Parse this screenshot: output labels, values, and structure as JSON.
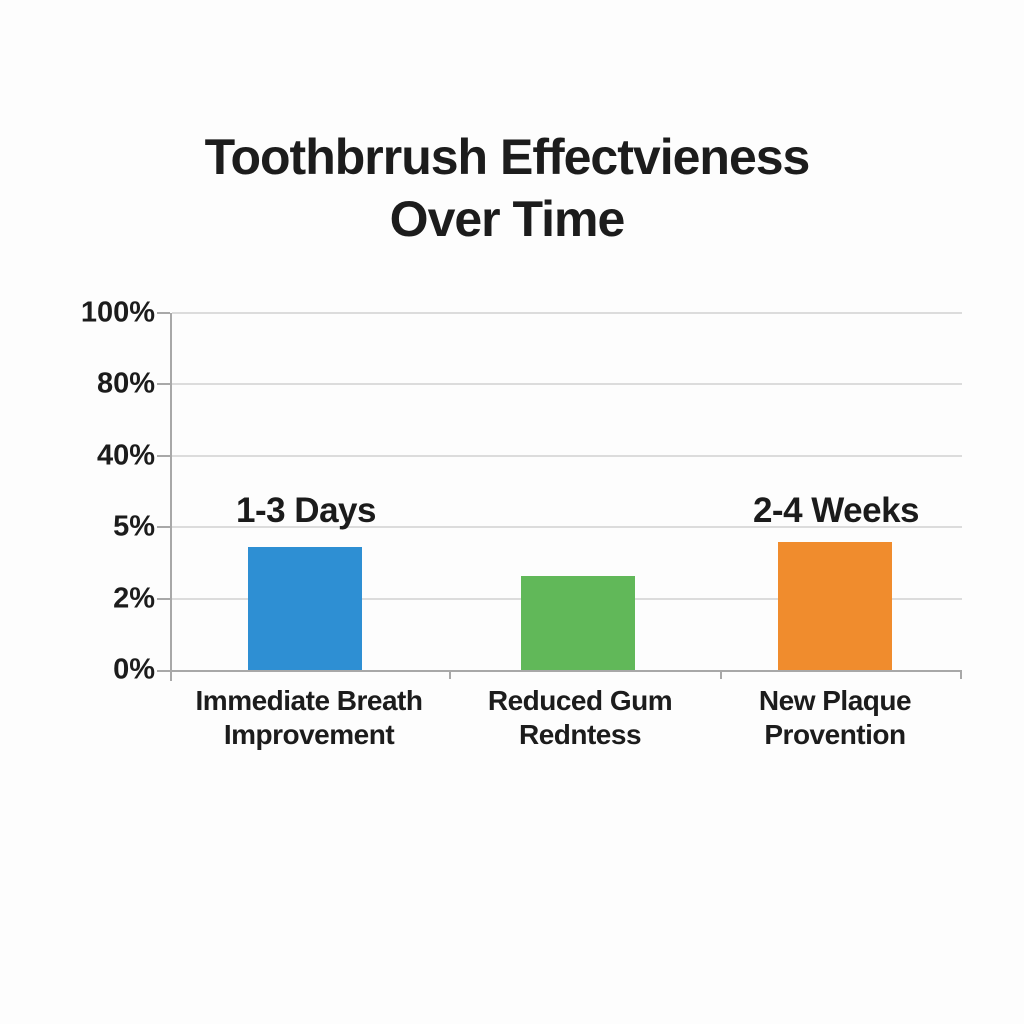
{
  "title": {
    "line1": "Toothbrrush Effectvieness",
    "line2": "Over Time",
    "full": "Toothbrrush Effectvieness Over Time"
  },
  "colors": {
    "background": "#FDFDFD",
    "text": "#1C1C1C",
    "gridline": "#DCDCDC",
    "axis": "#A8A8A8",
    "bar_blue": "#2E8FD3",
    "bar_green": "#61B859",
    "bar_orange": "#F08C2D"
  },
  "chart_data": {
    "type": "bar",
    "title": "Toothbrrush Effectvieness Over Time",
    "xlabel": "",
    "ylabel": "",
    "grid": true,
    "legend": false,
    "y_ticks_bottom_to_top": [
      "0%",
      "2%",
      "5%",
      "40%",
      "80%",
      "100%"
    ],
    "y_axis_evenly_spaced": true,
    "categories": [
      "Immediate Breath Improvement",
      "Reduced Gum Redntess",
      "New Plaque Provention"
    ],
    "values_fraction_of_axis": [
      0.345,
      0.263,
      0.359
    ],
    "bars": [
      {
        "category": "Immediate Breath Improvement",
        "label_lines": [
          "Immediate Breath",
          "Improvement"
        ],
        "annotation": "1-3 Days",
        "color": "#2E8FD3",
        "value_fraction_of_axis": 0.345,
        "height_css": "34.5%"
      },
      {
        "category": "Reduced Gum Redntess",
        "label_lines": [
          "Reduced Gum",
          "Redntess"
        ],
        "annotation": "",
        "color": "#61B859",
        "value_fraction_of_axis": 0.263,
        "height_css": "26.3%"
      },
      {
        "category": "New Plaque Provention",
        "label_lines": [
          "New Plaque",
          "Provention"
        ],
        "annotation": "2-4 Weeks",
        "color": "#F08C2D",
        "value_fraction_of_axis": 0.359,
        "height_css": "35.9%"
      }
    ]
  }
}
